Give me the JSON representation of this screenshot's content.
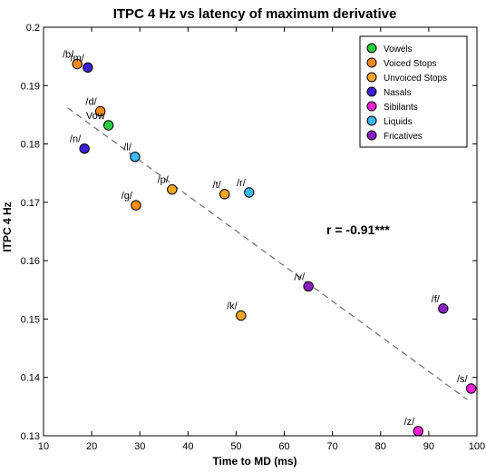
{
  "chart_data": {
    "type": "scatter",
    "title": "ITPC 4 Hz vs latency of maximum derivative",
    "xlabel": "Time to MD (ms)",
    "ylabel": "ITPC 4 Hz",
    "xlim": [
      10,
      100
    ],
    "ylim": [
      0.13,
      0.2
    ],
    "xticks": [
      "10",
      "20",
      "30",
      "40",
      "50",
      "60",
      "70",
      "80",
      "90",
      "100"
    ],
    "yticks": [
      "0.13",
      "0.14",
      "0.15",
      "0.16",
      "0.17",
      "0.18",
      "0.19",
      "0.2"
    ],
    "grid": false,
    "legend_position": "top-right",
    "annotation": "r = -0.91***",
    "trend_line": {
      "x": [
        15,
        98
      ],
      "y": [
        0.1862,
        0.1362
      ],
      "style": "dashed",
      "color": "#777777"
    },
    "categories": [
      {
        "name": "Vowels",
        "color": "#2ecc40"
      },
      {
        "name": "Voiced Stops",
        "color": "#ff8c1a"
      },
      {
        "name": "Unvoiced Stops",
        "color": "#f5a623"
      },
      {
        "name": "Nasals",
        "color": "#3d1fd6"
      },
      {
        "name": "Sibilants",
        "color": "#ff1fd6"
      },
      {
        "name": "Liquids",
        "color": "#3db8f0"
      },
      {
        "name": "Fricatives",
        "color": "#8a1fc4"
      }
    ],
    "points": [
      {
        "label": "/b/",
        "category": "Voiced Stops",
        "x": 17.0,
        "y": 0.1937
      },
      {
        "label": "/m/",
        "category": "Nasals",
        "x": 19.2,
        "y": 0.1931
      },
      {
        "label": "/d/",
        "category": "Voiced Stops",
        "x": 21.8,
        "y": 0.1856
      },
      {
        "label": "Vow",
        "category": "Vowels",
        "x": 23.5,
        "y": 0.1832
      },
      {
        "label": "/n/",
        "category": "Nasals",
        "x": 18.5,
        "y": 0.1792
      },
      {
        "label": "/l/",
        "category": "Liquids",
        "x": 29.0,
        "y": 0.1778
      },
      {
        "label": "/p/",
        "category": "Unvoiced Stops",
        "x": 36.7,
        "y": 0.1722
      },
      {
        "label": "/g/",
        "category": "Voiced Stops",
        "x": 29.2,
        "y": 0.1695
      },
      {
        "label": "/t/",
        "category": "Unvoiced Stops",
        "x": 47.6,
        "y": 0.1714
      },
      {
        "label": "/r/",
        "category": "Liquids",
        "x": 52.7,
        "y": 0.1717
      },
      {
        "label": "/v/",
        "category": "Fricatives",
        "x": 65.0,
        "y": 0.1556
      },
      {
        "label": "/k/",
        "category": "Unvoiced Stops",
        "x": 51.0,
        "y": 0.1506
      },
      {
        "label": "/f/",
        "category": "Fricatives",
        "x": 93.0,
        "y": 0.1518
      },
      {
        "label": "/s/",
        "category": "Sibilants",
        "x": 98.8,
        "y": 0.1381
      },
      {
        "label": "/z/",
        "category": "Sibilants",
        "x": 87.8,
        "y": 0.1308
      }
    ]
  }
}
